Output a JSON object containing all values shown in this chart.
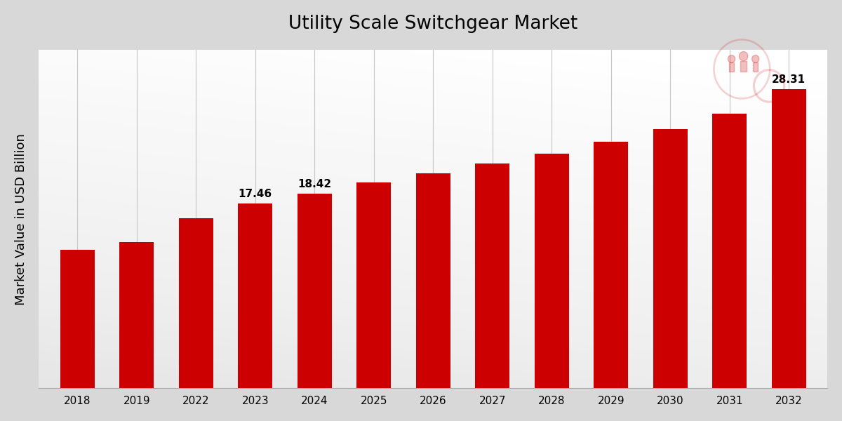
{
  "categories": [
    "2018",
    "2019",
    "2022",
    "2023",
    "2024",
    "2025",
    "2026",
    "2027",
    "2028",
    "2029",
    "2030",
    "2031",
    "2032"
  ],
  "values": [
    13.1,
    13.8,
    16.1,
    17.46,
    18.42,
    19.5,
    20.35,
    21.25,
    22.2,
    23.3,
    24.5,
    26.0,
    28.31
  ],
  "bar_color": "#cc0000",
  "title": "Utility Scale Switchgear Market",
  "ylabel": "Market Value in USD Billion",
  "title_fontsize": 19,
  "tick_fontsize": 11,
  "axis_label_fontsize": 13,
  "annotated_bars": {
    "2023": "17.46",
    "2024": "18.42",
    "2032": "28.31"
  },
  "ylim_max": 32,
  "grid_color": "#c8c8c8",
  "annotation_fontsize": 11,
  "bar_width": 0.58
}
